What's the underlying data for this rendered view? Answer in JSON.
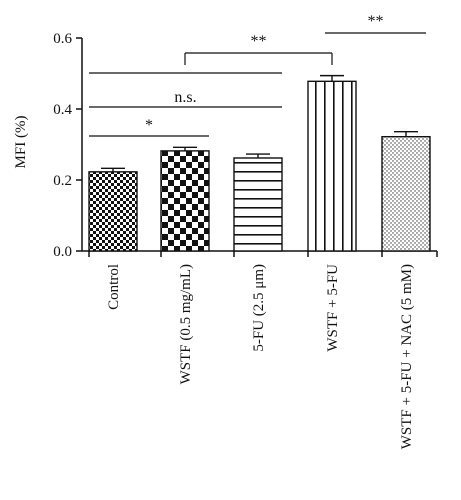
{
  "chart_data": {
    "type": "bar",
    "ylabel": "MFI (%)",
    "ylim": [
      0,
      0.6
    ],
    "yticks": [
      "0.0",
      "0.2",
      "0.4",
      "0.6"
    ],
    "categories": [
      "Control",
      "WSTF (0.5 mg/mL)",
      "5-FU (2.5 μm)",
      "WSTF + 5-FU",
      "WSTF + 5-FU + NAC (5 mM)"
    ],
    "values": [
      0.223,
      0.282,
      0.262,
      0.478,
      0.322
    ],
    "errors": [
      0.01,
      0.01,
      0.011,
      0.016,
      0.014
    ],
    "patterns": [
      "fine-checker",
      "coarse-checker",
      "horizontal-stripes",
      "vertical-stripes",
      "dots"
    ],
    "significance": [
      {
        "label": "*",
        "from": "Control",
        "to": "WSTF (0.5 mg/mL)"
      },
      {
        "label": "n.s.",
        "from": "Control",
        "to": "5-FU (2.5 μm)"
      },
      {
        "label": "",
        "from": "Control",
        "to": "5-FU (2.5 μm)"
      },
      {
        "label": "**",
        "from": "WSTF (0.5 mg/mL)",
        "to": "WSTF + 5-FU",
        "style": "bracket"
      },
      {
        "label": "**",
        "from": "WSTF + 5-FU",
        "to": "WSTF + 5-FU + NAC (5 mM)"
      }
    ],
    "grid": false,
    "legend": "none"
  }
}
